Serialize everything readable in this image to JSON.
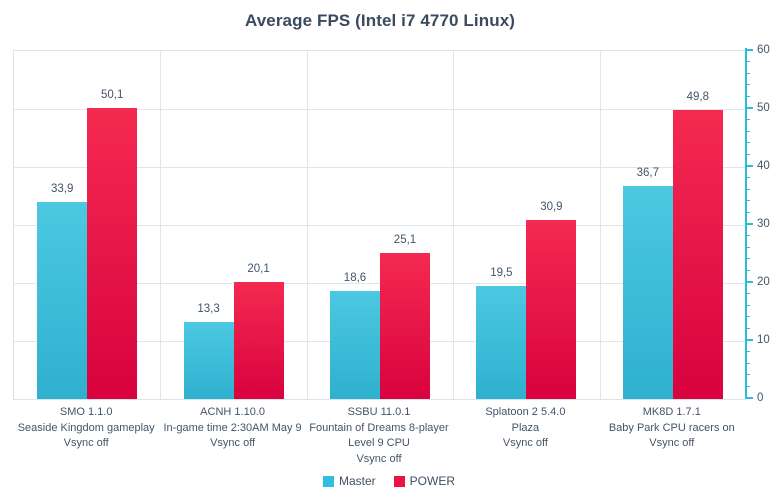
{
  "title": "Average FPS (Intel i7 4770 Linux)",
  "chart_data": {
    "type": "bar",
    "title": "Average FPS (Intel i7 4770 Linux)",
    "categories": [
      [
        "SMO 1.1.0",
        "Seaside Kingdom gameplay",
        "Vsync off"
      ],
      [
        "ACNH 1.10.0",
        "In-game time 2:30AM May 9",
        "Vsync off"
      ],
      [
        "SSBU 11.0.1",
        "Fountain of Dreams 8-player",
        "Level 9 CPU",
        "Vsync off"
      ],
      [
        "Splatoon 2 5.4.0",
        "Plaza",
        "Vsync off"
      ],
      [
        "MK8D 1.7.1",
        "Baby Park CPU racers on",
        "Vsync off"
      ]
    ],
    "series": [
      {
        "name": "Master",
        "values": [
          33.9,
          13.3,
          18.6,
          19.5,
          36.7
        ],
        "value_labels": [
          "33,9",
          "13,3",
          "18,6",
          "19,5",
          "36,7"
        ],
        "color_top": "#4cc8e2",
        "color_bottom": "#2eb1ce",
        "legend_color": "#2fc0dc"
      },
      {
        "name": "POWER",
        "values": [
          50.1,
          20.1,
          25.1,
          30.9,
          49.8
        ],
        "value_labels": [
          "50,1",
          "20,1",
          "25,1",
          "30,9",
          "49,8"
        ],
        "color_top": "#f42a50",
        "color_bottom": "#d8023f",
        "legend_color": "#ea1240"
      }
    ],
    "ylim": [
      0,
      60
    ],
    "y_major_step": 10,
    "y_minor_step": 2,
    "y_tick_labels": [
      "0",
      "10",
      "20",
      "30",
      "40",
      "50",
      "60"
    ],
    "grid": true,
    "axis_color": "#2abdd8",
    "legend_position": "bottom"
  }
}
